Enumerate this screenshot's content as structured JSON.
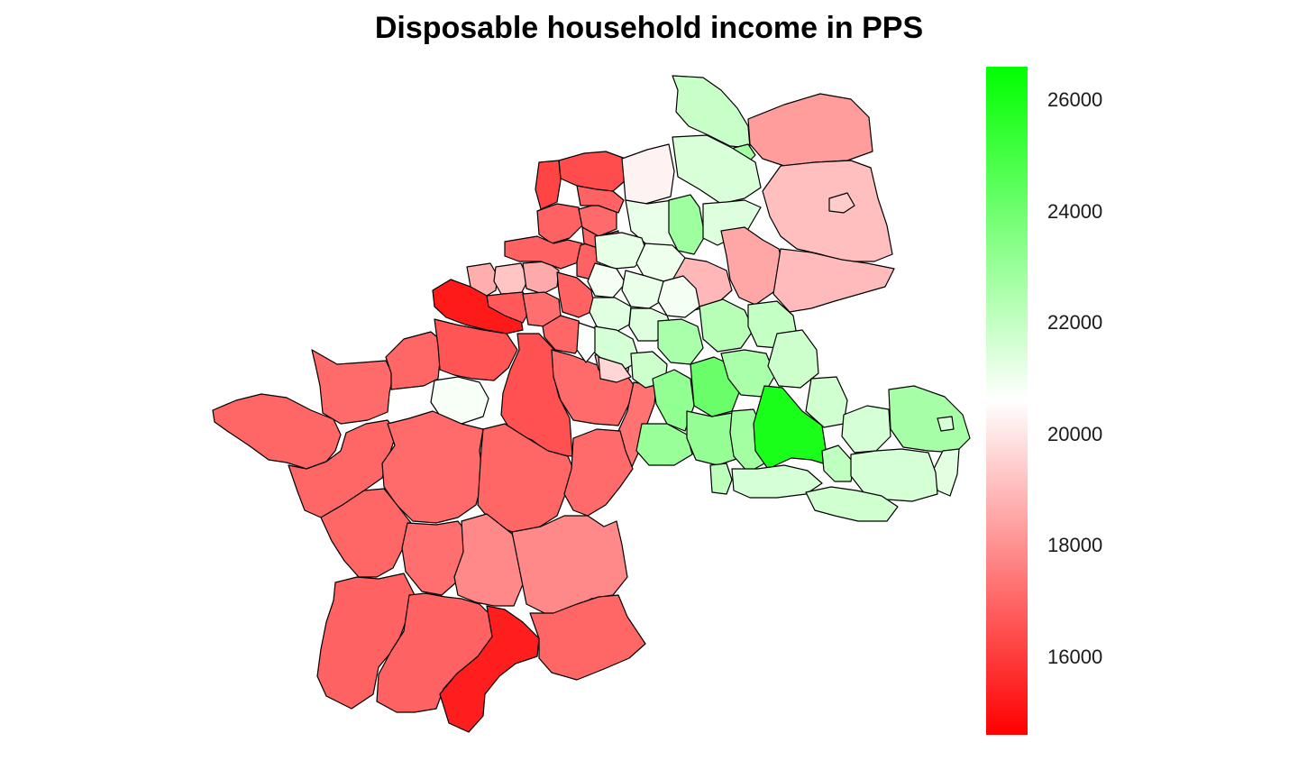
{
  "title": "Disposable household income in PPS",
  "legend": {
    "min": 14600,
    "max": 26600,
    "colors": {
      "low": "#ff0000",
      "mid": "#ffffff",
      "high": "#00ff00"
    },
    "mid_value": 20600,
    "ticks": [
      {
        "value": 26000,
        "label": "26000"
      },
      {
        "value": 24000,
        "label": "24000"
      },
      {
        "value": 22000,
        "label": "22000"
      },
      {
        "value": 20000,
        "label": "20000"
      },
      {
        "value": 18000,
        "label": "18000"
      },
      {
        "value": 16000,
        "label": "16000"
      }
    ]
  },
  "regions": [
    {
      "id": "fr-bretagne",
      "value": 17000
    },
    {
      "id": "fr-normandie-basse",
      "value": 17100
    },
    {
      "id": "fr-normandie-haute",
      "value": 17000
    },
    {
      "id": "fr-nord",
      "value": 15200
    },
    {
      "id": "fr-picardie",
      "value": 16600
    },
    {
      "id": "fr-champagne",
      "value": 16500
    },
    {
      "id": "fr-lorraine",
      "value": 17100
    },
    {
      "id": "fr-alsace",
      "value": 17300
    },
    {
      "id": "fr-ile-de-france",
      "value": 20800
    },
    {
      "id": "fr-pays-de-la-loire",
      "value": 17000
    },
    {
      "id": "fr-centre",
      "value": 17100
    },
    {
      "id": "fr-bourgogne",
      "value": 17000
    },
    {
      "id": "fr-franche-comte",
      "value": 17100
    },
    {
      "id": "fr-poitou",
      "value": 17000
    },
    {
      "id": "fr-limousin",
      "value": 17200
    },
    {
      "id": "fr-auvergne",
      "value": 17800
    },
    {
      "id": "fr-rhone-alpes",
      "value": 17800
    },
    {
      "id": "fr-aquitaine",
      "value": 16900
    },
    {
      "id": "fr-midi-pyrenees",
      "value": 16900
    },
    {
      "id": "fr-languedoc",
      "value": 15300
    },
    {
      "id": "fr-paca",
      "value": 17000
    },
    {
      "id": "be-west",
      "value": 18700
    },
    {
      "id": "be-brussels",
      "value": 19200
    },
    {
      "id": "be-central",
      "value": 18600
    },
    {
      "id": "be-hainaut",
      "value": 16700
    },
    {
      "id": "be-namur",
      "value": 17200
    },
    {
      "id": "be-liege",
      "value": 16900
    },
    {
      "id": "be-luxembourg",
      "value": 17000
    },
    {
      "id": "lu",
      "value": 18700
    },
    {
      "id": "nl-north",
      "value": 16400
    },
    {
      "id": "nl-friesland",
      "value": 16200
    },
    {
      "id": "nl-holland",
      "value": 16900
    },
    {
      "id": "nl-utrecht",
      "value": 17100
    },
    {
      "id": "nl-gelderland",
      "value": 16900
    },
    {
      "id": "nl-south",
      "value": 16900
    },
    {
      "id": "nl-limburg",
      "value": 16900
    },
    {
      "id": "nl-zeeland",
      "value": 17000
    },
    {
      "id": "de-sh",
      "value": 21900
    },
    {
      "id": "de-hamburg",
      "value": 22800
    },
    {
      "id": "de-mv",
      "value": 18300
    },
    {
      "id": "de-brandenburg",
      "value": 19100
    },
    {
      "id": "de-berlin",
      "value": 19400
    },
    {
      "id": "de-ni-nw",
      "value": 20300
    },
    {
      "id": "de-ni-lueneburg",
      "value": 21500
    },
    {
      "id": "de-ni-hannover",
      "value": 21100
    },
    {
      "id": "de-ni-central",
      "value": 22900
    },
    {
      "id": "de-ni-braunschweig",
      "value": 21400
    },
    {
      "id": "de-nrw-muenster",
      "value": 21200
    },
    {
      "id": "de-nrw-detmold",
      "value": 21000
    },
    {
      "id": "de-nrw-duesseldorf",
      "value": 20900
    },
    {
      "id": "de-nrw-arnsberg",
      "value": 21100
    },
    {
      "id": "de-nrw-koeln",
      "value": 21300
    },
    {
      "id": "de-sachsen-anhalt",
      "value": 18500
    },
    {
      "id": "de-thueringen",
      "value": 18900
    },
    {
      "id": "de-sachsen",
      "value": 19000
    },
    {
      "id": "de-hessen-kassel",
      "value": 20900
    },
    {
      "id": "de-hessen-giessen",
      "value": 21400
    },
    {
      "id": "de-hessen-darmstadt",
      "value": 22600
    },
    {
      "id": "de-rp-koblenz",
      "value": 21600
    },
    {
      "id": "de-rp-trier",
      "value": 20700
    },
    {
      "id": "de-saarland",
      "value": 19600
    },
    {
      "id": "de-rp-rheinhessen",
      "value": 21800
    },
    {
      "id": "de-bw-karlsruhe",
      "value": 23200
    },
    {
      "id": "de-bw-stuttgart",
      "value": 24100
    },
    {
      "id": "de-bw-freiburg",
      "value": 23000
    },
    {
      "id": "de-bw-tuebingen",
      "value": 23100
    },
    {
      "id": "de-by-unterfranken",
      "value": 22300
    },
    {
      "id": "de-by-oberfranken",
      "value": 22000
    },
    {
      "id": "de-by-mittelfranken",
      "value": 22600
    },
    {
      "id": "de-by-oberpfalz",
      "value": 21800
    },
    {
      "id": "de-by-niederbayern",
      "value": 21700
    },
    {
      "id": "de-by-schwaben",
      "value": 22800
    },
    {
      "id": "de-by-oberbayern",
      "value": 26000
    },
    {
      "id": "at-vorarlberg",
      "value": 22200
    },
    {
      "id": "at-tirol",
      "value": 21600
    },
    {
      "id": "at-salzburg",
      "value": 22100
    },
    {
      "id": "at-oberoesterreich",
      "value": 21600
    },
    {
      "id": "at-niederoesterreich",
      "value": 22700
    },
    {
      "id": "at-wien",
      "value": 21500
    },
    {
      "id": "at-burgenland",
      "value": 21300
    },
    {
      "id": "at-steiermark",
      "value": 21600
    },
    {
      "id": "at-kaernten",
      "value": 21700
    }
  ]
}
